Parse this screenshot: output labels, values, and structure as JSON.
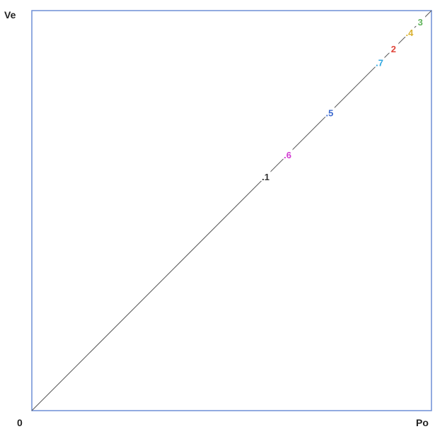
{
  "chart_data": {
    "type": "scatter",
    "ylabel": "Ve",
    "xlabel": "Po",
    "origin_label": "0",
    "xlim": [
      0,
      1
    ],
    "ylim": [
      0,
      1
    ],
    "grid": false,
    "frame_color": "#6f8fd6",
    "line_color": "#555555",
    "points": [
      {
        "label": ".1",
        "x": 0.585,
        "y": 0.585,
        "color": "#333333"
      },
      {
        "label": ".6",
        "x": 0.64,
        "y": 0.64,
        "color": "#d23bd2"
      },
      {
        "label": ".5",
        "x": 0.745,
        "y": 0.745,
        "color": "#3e6bcf"
      },
      {
        "label": ".7",
        "x": 0.87,
        "y": 0.87,
        "color": "#2fa7e0"
      },
      {
        "label": "2",
        "x": 0.905,
        "y": 0.905,
        "color": "#e0453a"
      },
      {
        "label": ".4",
        "x": 0.945,
        "y": 0.945,
        "color": "#d9b233"
      },
      {
        "label": "3",
        "x": 0.972,
        "y": 0.972,
        "color": "#5fb35a"
      }
    ]
  }
}
